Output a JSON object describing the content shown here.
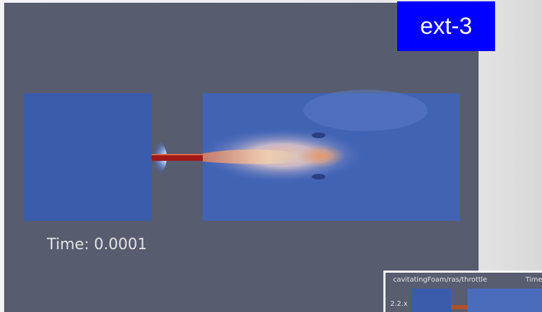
{
  "badge": {
    "label": "ext-3"
  },
  "simulation": {
    "time_label": "Time: 0.0001"
  },
  "inset": {
    "title": "cavitatingFoam/ras/throttle",
    "time_label": "Time",
    "version": "2.2.x"
  }
}
